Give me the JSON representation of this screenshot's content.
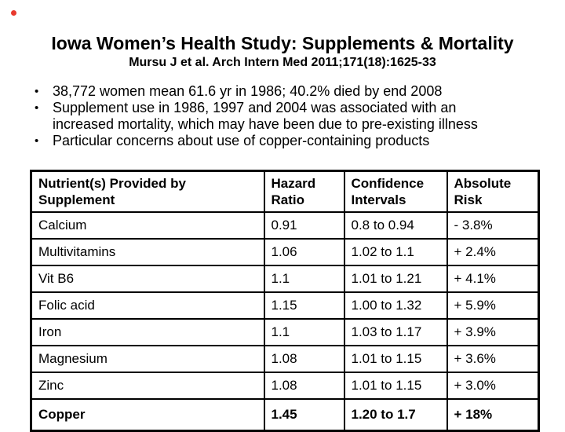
{
  "slide": {
    "title": "Iowa Women’s Health Study: Supplements & Mortality",
    "subtitle": "Mursu J et al. Arch Intern Med 2011;171(18):1625-33",
    "bullet_char": "•",
    "bullets": [
      "38,772 women mean 61.6 yr in 1986; 40.2% died by end 2008",
      "Supplement use in 1986, 1997 and 2004 was associated with an increased mortality, which may have been due to pre-existing illness",
      "Particular concerns about use of copper-containing products"
    ]
  },
  "table": {
    "headers": {
      "nutrient": "Nutrient(s) Provided by Supplement",
      "hazard_ratio": "Hazard Ratio",
      "confidence_intervals": "Confidence Intervals",
      "absolute_risk": "Absolute Risk"
    },
    "rows": [
      {
        "nutrient": "Calcium",
        "hazard_ratio": "0.91",
        "confidence_interval": "0.8 to 0.94",
        "absolute_risk": "- 3.8%"
      },
      {
        "nutrient": "Multivitamins",
        "hazard_ratio": "1.06",
        "confidence_interval": "1.02 to 1.1",
        "absolute_risk": "+ 2.4%"
      },
      {
        "nutrient": "Vit B6",
        "hazard_ratio": "1.1",
        "confidence_interval": "1.01 to 1.21",
        "absolute_risk": "+ 4.1%"
      },
      {
        "nutrient": "Folic acid",
        "hazard_ratio": "1.15",
        "confidence_interval": "1.00 to 1.32",
        "absolute_risk": "+ 5.9%"
      },
      {
        "nutrient": "Iron",
        "hazard_ratio": "1.1",
        "confidence_interval": "1.03 to 1.17",
        "absolute_risk": "+ 3.9%"
      },
      {
        "nutrient": "Magnesium",
        "hazard_ratio": "1.08",
        "confidence_interval": "1.01 to 1.15",
        "absolute_risk": "+ 3.6%"
      },
      {
        "nutrient": "Zinc",
        "hazard_ratio": "1.08",
        "confidence_interval": "1.01 to 1.15",
        "absolute_risk": "+ 3.0%"
      },
      {
        "nutrient": "Copper",
        "hazard_ratio": "1.45",
        "confidence_interval": "1.20 to 1.7",
        "absolute_risk": "+ 18%"
      }
    ]
  },
  "colors": {
    "background": "#ffffff",
    "text": "#000000",
    "table_border": "#000000",
    "cursor_dot": "#e8392e"
  }
}
